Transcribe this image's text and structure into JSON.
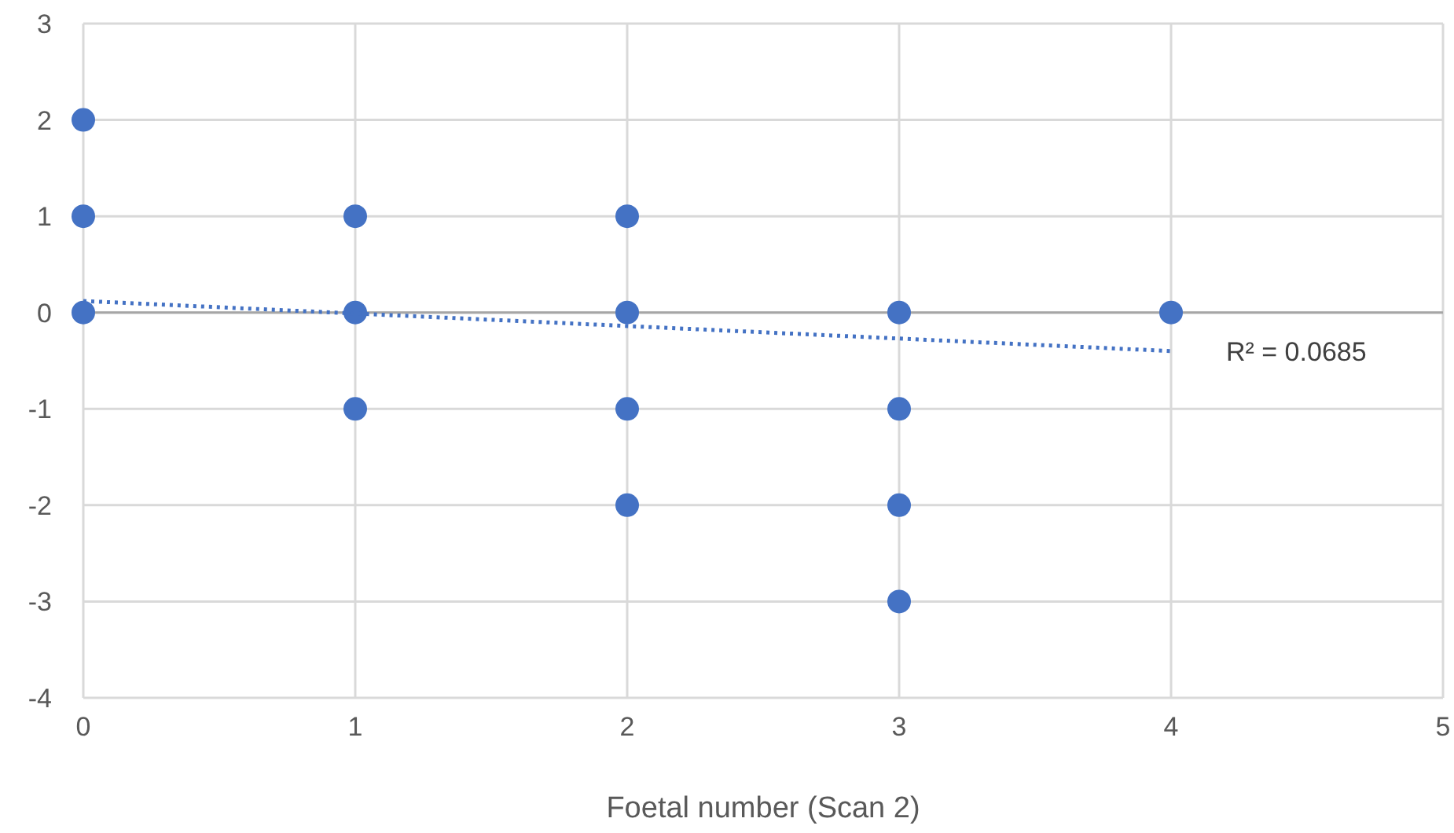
{
  "chart_data": {
    "type": "scatter",
    "xlabel": "Foetal number (Scan 2)",
    "xlim": [
      0,
      5
    ],
    "xticks": [
      0,
      1,
      2,
      3,
      4,
      5
    ],
    "ylim": [
      -4,
      3
    ],
    "yticks": [
      -4,
      -3,
      -2,
      -1,
      0,
      1,
      2,
      3
    ],
    "grid": true,
    "series": [
      {
        "color": "#4472c4",
        "marker": "circle",
        "x": [
          0,
          0,
          0,
          1,
          1,
          1,
          2,
          2,
          2,
          2,
          3,
          3,
          3,
          3,
          4
        ],
        "values": [
          2,
          1,
          0,
          1,
          0,
          -1,
          1,
          0,
          -1,
          -2,
          0,
          -1,
          -2,
          -3,
          0
        ]
      },
      {
        "type": "line",
        "color": "#4472c4",
        "line_style": "dotted",
        "x": [
          0,
          4
        ],
        "values": [
          0.12,
          -0.4
        ]
      }
    ],
    "annotations": [
      "R² = 0.0685"
    ]
  }
}
